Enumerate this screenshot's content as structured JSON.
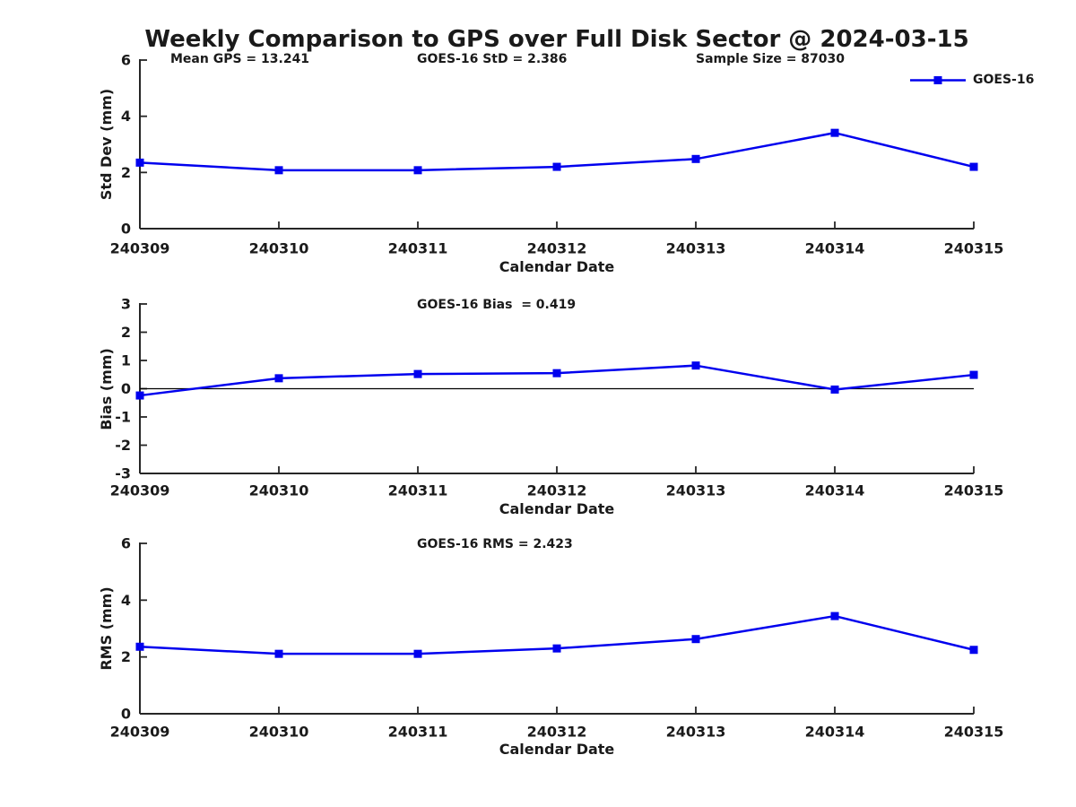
{
  "page_title": "Weekly Comparison to GPS over Full Disk Sector @ 2024-03-15",
  "legend": {
    "label": "GOES-16"
  },
  "colors": {
    "series": "#0000ee",
    "axis": "#262626",
    "text": "#1a1a1a",
    "zero_line": "#000000",
    "background": "#ffffff"
  },
  "chart_data": [
    {
      "type": "line",
      "name": "std-dev",
      "annotations": [
        "Mean GPS = 13.241",
        "GOES-16 StD = 2.386",
        "Sample Size = 87030"
      ],
      "x": [
        "240309",
        "240310",
        "240311",
        "240312",
        "240313",
        "240314",
        "240315"
      ],
      "series": [
        {
          "name": "GOES-16",
          "values": [
            2.35,
            2.08,
            2.08,
            2.2,
            2.48,
            3.41,
            2.2
          ]
        }
      ],
      "xlabel": "Calendar Date",
      "ylabel": "Std Dev (mm)",
      "ylim": [
        0,
        6
      ],
      "yticks": [
        0,
        2,
        4,
        6
      ],
      "marker": "square",
      "grid": false,
      "legend_position": "top-right-outside"
    },
    {
      "type": "line",
      "name": "bias",
      "annotations": [
        "GOES-16 Bias  = 0.419"
      ],
      "x": [
        "240309",
        "240310",
        "240311",
        "240312",
        "240313",
        "240314",
        "240315"
      ],
      "series": [
        {
          "name": "GOES-16",
          "values": [
            -0.24,
            0.37,
            0.52,
            0.55,
            0.82,
            -0.03,
            0.49
          ]
        }
      ],
      "xlabel": "Calendar Date",
      "ylabel": "Bias (mm)",
      "ylim": [
        -3,
        3
      ],
      "yticks": [
        -3,
        -2,
        -1,
        0,
        1,
        2,
        3
      ],
      "zero_line": true,
      "marker": "square",
      "grid": false
    },
    {
      "type": "line",
      "name": "rms",
      "annotations": [
        "GOES-16 RMS = 2.423"
      ],
      "x": [
        "240309",
        "240310",
        "240311",
        "240312",
        "240313",
        "240314",
        "240315"
      ],
      "series": [
        {
          "name": "GOES-16",
          "values": [
            2.36,
            2.11,
            2.11,
            2.3,
            2.63,
            3.44,
            2.25
          ]
        }
      ],
      "xlabel": "Calendar Date",
      "ylabel": "RMS (mm)",
      "ylim": [
        0,
        6
      ],
      "yticks": [
        0,
        2,
        4,
        6
      ],
      "marker": "square",
      "grid": false
    }
  ]
}
